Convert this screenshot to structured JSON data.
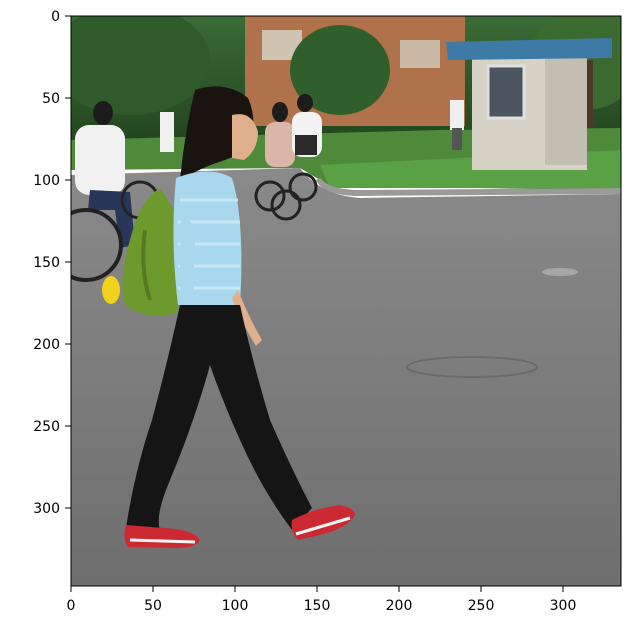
{
  "image": {
    "subject": "woman walking across a paved campus road",
    "description": "A young woman in a light blue striped shirt, black pants, red sneakers and a green backpack walks left-to-right; cyclists and pedestrians behind her; a small white guard booth and trees in the background."
  },
  "axes": {
    "x_ticks": [
      "0",
      "50",
      "100",
      "150",
      "200",
      "250",
      "300"
    ],
    "y_ticks": [
      "0",
      "50",
      "100",
      "150",
      "200",
      "250",
      "300"
    ],
    "xlim": [
      0,
      336
    ],
    "ylim": [
      348,
      0
    ]
  },
  "colors": {
    "road": "#7b7b7b",
    "grass": "#4f8a3a",
    "trees": "#2f5a2a",
    "building": "#b0724a",
    "booth": "#d6d2c6",
    "booth_roof": "#3d7aa6",
    "shirt": "#a9d8ee",
    "pants": "#151515",
    "shoes": "#cc2a33",
    "backpack": "#6d9a2c",
    "hair": "#1a1410"
  }
}
